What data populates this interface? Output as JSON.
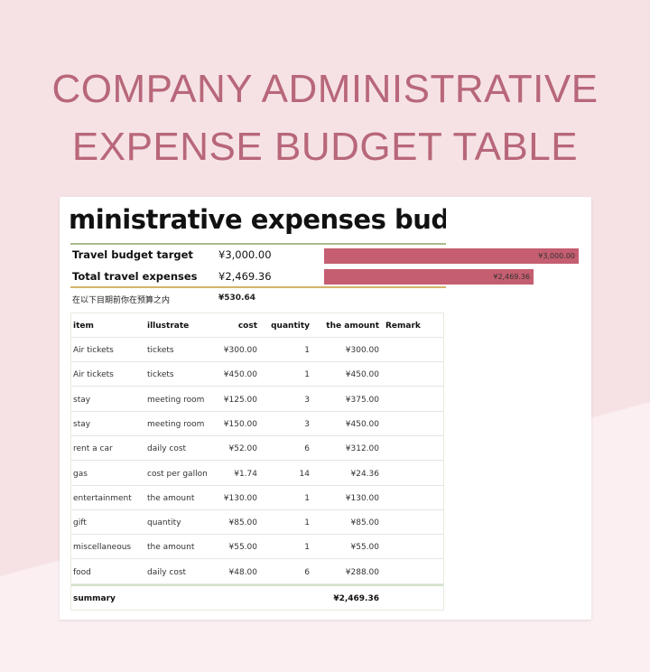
{
  "page": {
    "title_line1": "COMPANY ADMINISTRATIVE",
    "title_line2": "EXPENSE BUDGET TABLE"
  },
  "sheet": {
    "heading": "ministrative expenses budg",
    "summary": [
      {
        "label": "Travel budget target",
        "value": "¥3,000.00"
      },
      {
        "label": "Total travel expenses",
        "value": "¥2,469.36"
      },
      {
        "label": "在以下目期前你在预算之内",
        "value": "¥530.64"
      }
    ],
    "bars": [
      {
        "label": "¥3,000.00",
        "value": 3000
      },
      {
        "label": "¥2,469.36",
        "value": 2469.36
      }
    ],
    "bar_color": "#c45e70",
    "columns": [
      "item",
      "illustrate",
      "cost",
      "quantity",
      "the amount",
      "Remark"
    ],
    "rows": [
      [
        "Air tickets",
        "tickets",
        "¥300.00",
        "1",
        "¥300.00"
      ],
      [
        "Air tickets",
        "tickets",
        "¥450.00",
        "1",
        "¥450.00"
      ],
      [
        "stay",
        "meeting room",
        "¥125.00",
        "3",
        "¥375.00"
      ],
      [
        "stay",
        "meeting room",
        "¥150.00",
        "3",
        "¥450.00"
      ],
      [
        "rent a car",
        "daily cost",
        "¥52.00",
        "6",
        "¥312.00"
      ],
      [
        "gas",
        "cost per gallon",
        "¥1.74",
        "14",
        "¥24.36"
      ],
      [
        "entertainment",
        "the amount",
        "¥130.00",
        "1",
        "¥130.00"
      ],
      [
        "gift",
        "quantity",
        "¥85.00",
        "1",
        "¥85.00"
      ],
      [
        "miscellaneous",
        "the amount",
        "¥55.00",
        "1",
        "¥55.00"
      ],
      [
        "food",
        "daily cost",
        "¥48.00",
        "6",
        "¥288.00"
      ]
    ],
    "total": {
      "label": "summary",
      "value": "¥2,469.36"
    }
  }
}
